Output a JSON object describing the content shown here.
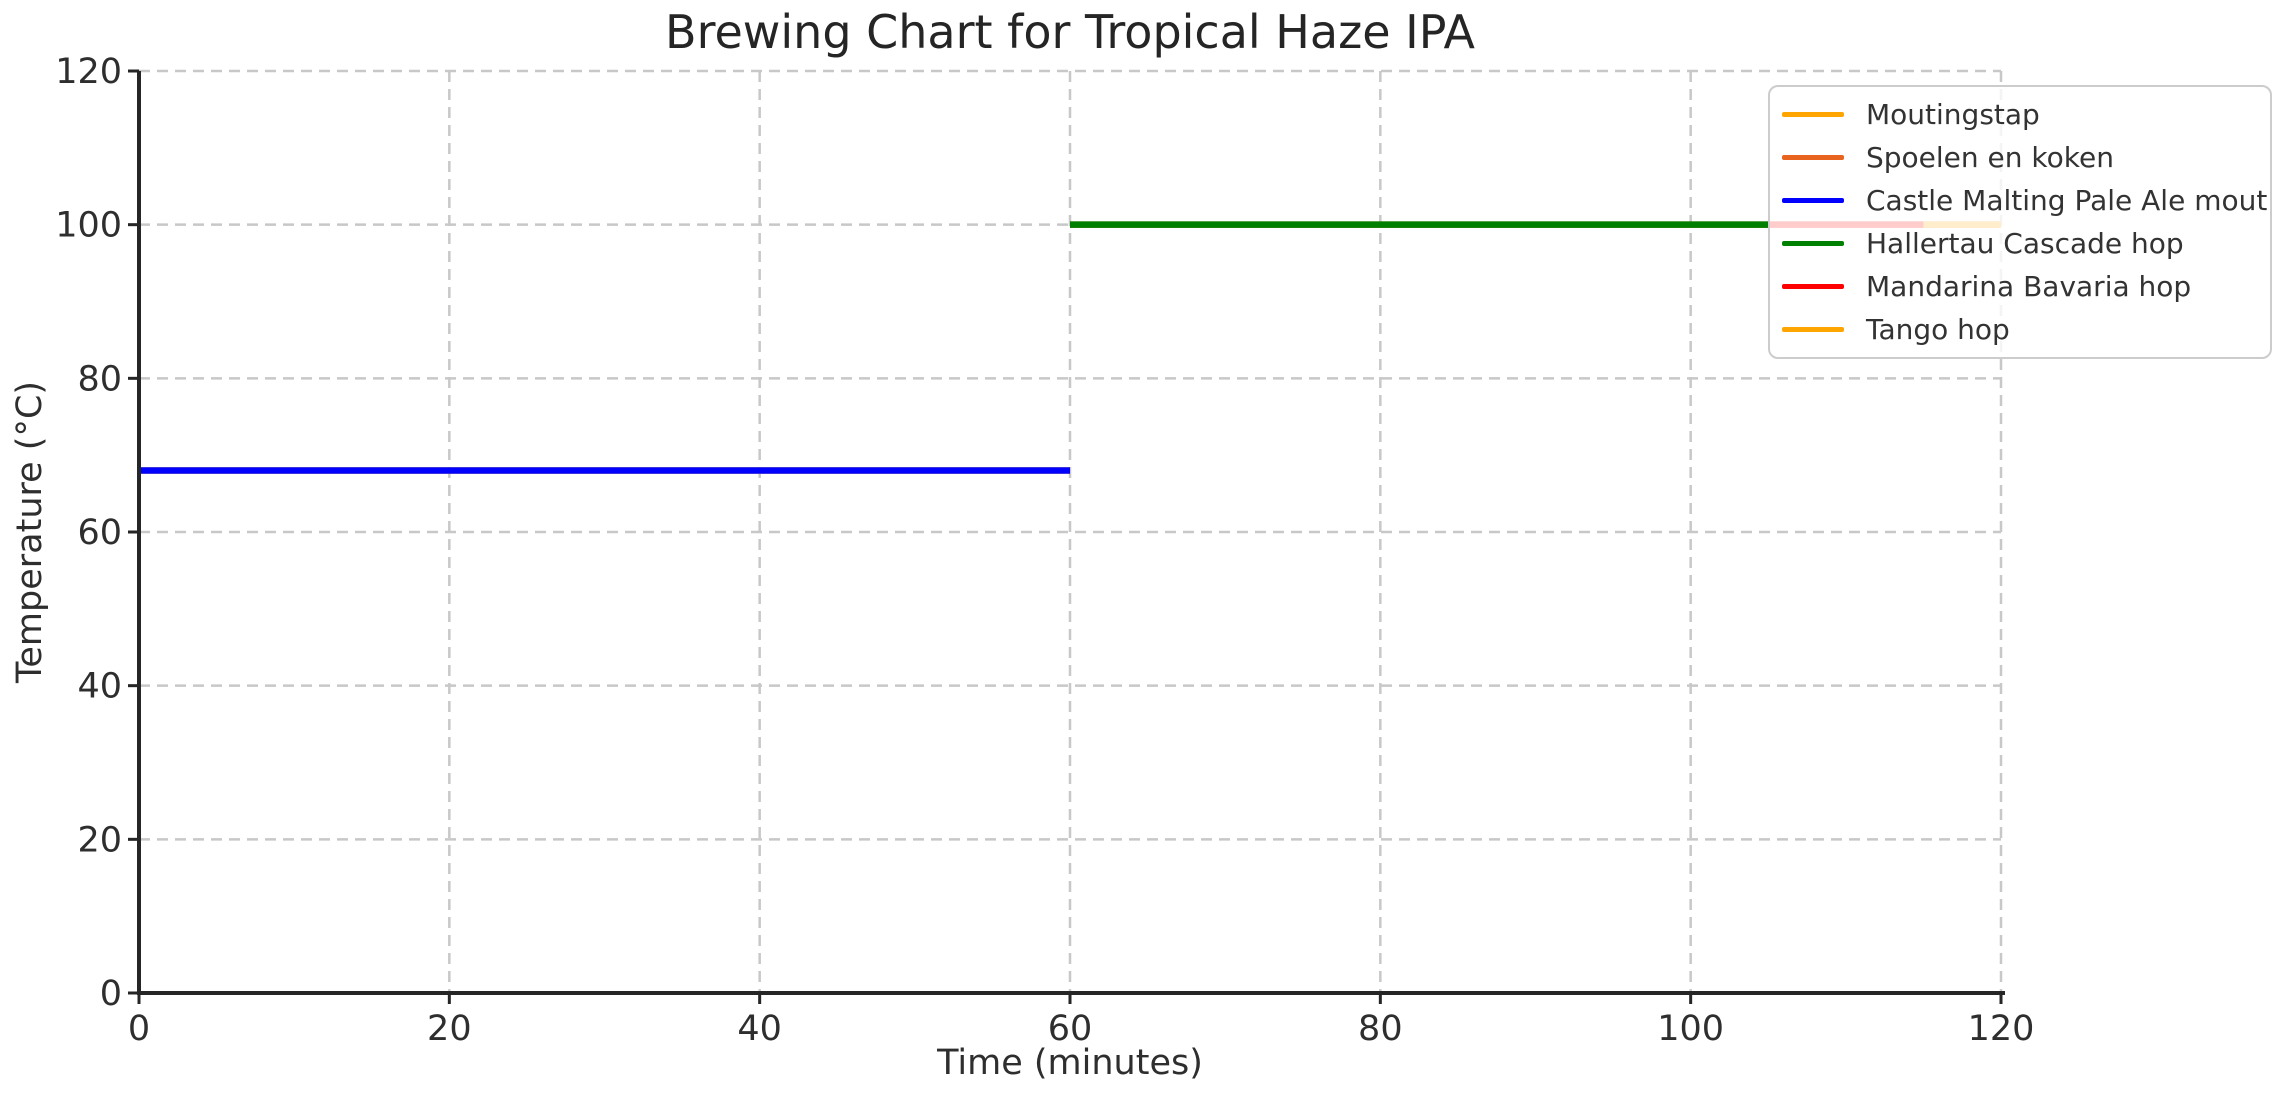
{
  "chart_data": {
    "type": "line",
    "title": "Brewing Chart for Tropical Haze IPA",
    "xlabel": "Time (minutes)",
    "ylabel": "Temperature (°C)",
    "xlim": [
      0,
      120
    ],
    "ylim": [
      0,
      120
    ],
    "xticks": [
      0,
      20,
      40,
      60,
      80,
      100,
      120
    ],
    "yticks": [
      0,
      20,
      40,
      60,
      80,
      100,
      120
    ],
    "grid": {
      "style": "dashed",
      "color": "#c8c8c8"
    },
    "axis": {
      "spine_color": "#262626",
      "tick_label_color": "#2e2e2e"
    },
    "legend_position": "upper-right",
    "series": [
      {
        "name": "Moutingstap",
        "color": "#FFA500",
        "temperature_c": 68,
        "start_min": 0,
        "end_min": 60,
        "points": [
          [
            0,
            68
          ],
          [
            60,
            68
          ]
        ],
        "visible": false
      },
      {
        "name": "Spoelen en koken",
        "color": "#E8641E",
        "temperature_c": 100,
        "start_min": 60,
        "end_min": 120,
        "points": [
          [
            60,
            100
          ],
          [
            120,
            100
          ]
        ],
        "visible": false
      },
      {
        "name": "Castle Malting Pale Ale mout",
        "color": "#0000FF",
        "temperature_c": 68,
        "start_min": 0,
        "end_min": 60,
        "points": [
          [
            0,
            68
          ],
          [
            60,
            68
          ]
        ],
        "visible": true
      },
      {
        "name": "Hallertau Cascade hop",
        "color": "#008000",
        "temperature_c": 100,
        "start_min": 60,
        "end_min": 105,
        "points": [
          [
            60,
            100
          ],
          [
            105,
            100
          ]
        ],
        "visible": true
      },
      {
        "name": "Mandarina Bavaria hop",
        "color": "#FF0000",
        "temperature_c": 100,
        "start_min": 105,
        "end_min": 115,
        "points": [
          [
            105,
            100
          ],
          [
            115,
            100
          ]
        ],
        "visible": true
      },
      {
        "name": "Tango hop",
        "color": "#FFA500",
        "temperature_c": 100,
        "start_min": 115,
        "end_min": 120,
        "points": [
          [
            115,
            100
          ],
          [
            120,
            100
          ]
        ],
        "visible": true
      }
    ]
  },
  "legend": {
    "background": "rgba(255,255,255,0.8)",
    "border_color": "#cccccc",
    "items": [
      {
        "label": "Moutingstap",
        "color": "#FFA500"
      },
      {
        "label": "Spoelen en koken",
        "color": "#E8641E"
      },
      {
        "label": "Castle Malting Pale Ale mout",
        "color": "#0000FF"
      },
      {
        "label": "Hallertau Cascade hop",
        "color": "#008000"
      },
      {
        "label": "Mandarina Bavaria hop",
        "color": "#FF0000"
      },
      {
        "label": "Tango hop",
        "color": "#FFA500"
      }
    ]
  }
}
